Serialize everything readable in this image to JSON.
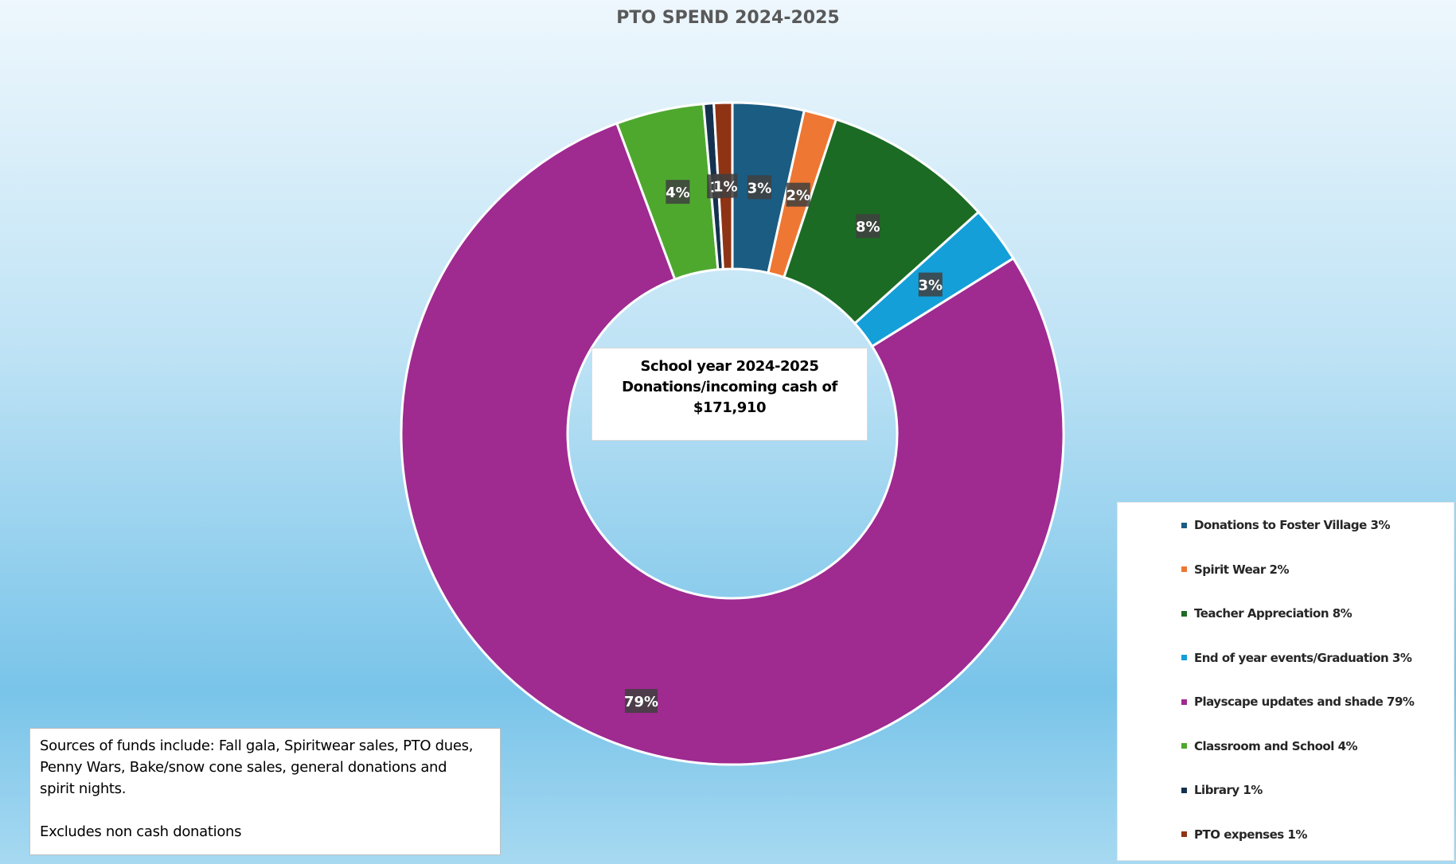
{
  "chart_data": {
    "type": "pie",
    "title": "PTO SPEND 2024-2025",
    "center_text": [
      "School year 2024-2025",
      "Donations/incoming cash of",
      "$171,910"
    ],
    "slices": [
      {
        "label": "Donations to Foster Village 3%",
        "value": 3.5,
        "data_label": "3%",
        "color": "#1b5c82"
      },
      {
        "label": "Spirit Wear 2%",
        "value": 1.6,
        "data_label": "2%",
        "color": "#ee7733"
      },
      {
        "label": "Teacher Appreciation  8%",
        "value": 8.3,
        "data_label": "8%",
        "color": "#1c6b24"
      },
      {
        "label": "End of year events/Graduation 3%",
        "value": 2.8,
        "data_label": "3%",
        "color": "#159fd8"
      },
      {
        "label": "Playscape updates and shade 79%",
        "value": 78.6,
        "data_label": "79%",
        "color": "#9f2a90"
      },
      {
        "label": "Classroom and School 4%",
        "value": 4.3,
        "data_label": "4%",
        "color": "#4ea82e"
      },
      {
        "label": "Library 1%",
        "value": 0.5,
        "data_label": "1",
        "color": "#14324f"
      },
      {
        "label": "PTO expenses 1%",
        "value": 0.9,
        "data_label": "1%",
        "color": "#8e3415"
      }
    ],
    "legend_position": "right"
  },
  "note": {
    "lines": [
      "Sources of funds include: Fall gala, Spiritwear sales, PTO dues,",
      "Penny Wars, Bake/snow cone sales, general donations and",
      "spirit nights."
    ],
    "footer": "Excludes non cash donations"
  }
}
